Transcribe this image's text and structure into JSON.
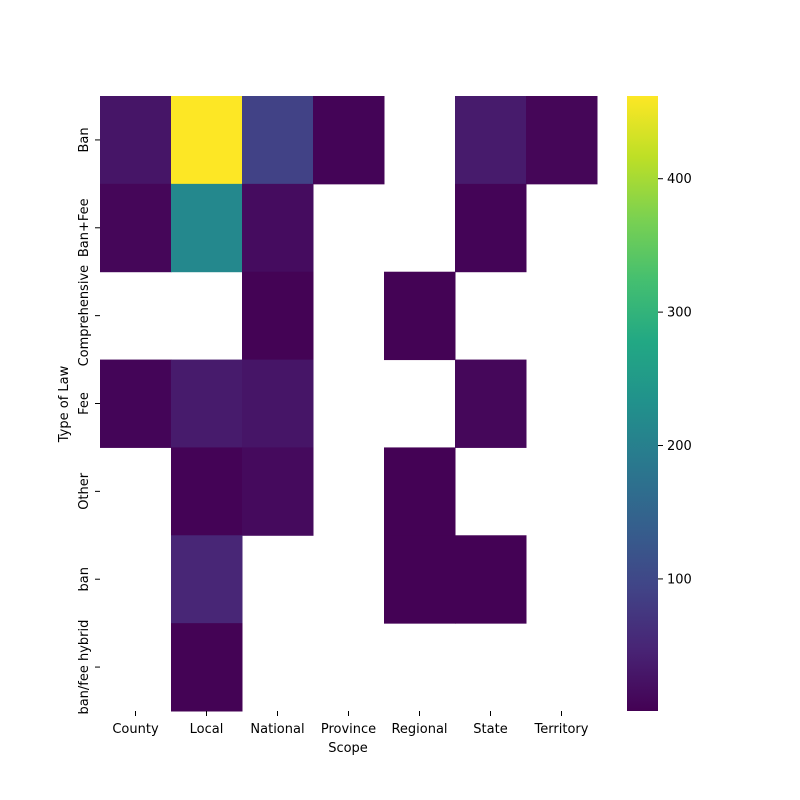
{
  "chart_data": {
    "type": "heatmap",
    "title": "",
    "xlabel": "Scope",
    "ylabel": "Type of Law",
    "x_categories": [
      "County",
      "Local",
      "National",
      "Province",
      "Regional",
      "State",
      "Territory"
    ],
    "y_categories": [
      "Ban",
      "Ban+Fee",
      "Comprehensive",
      "Fee",
      "Other",
      "ban",
      "ban/fee hybrid"
    ],
    "values": [
      [
        27,
        462,
        90,
        5,
        null,
        35,
        7
      ],
      [
        8,
        215,
        16,
        null,
        null,
        5,
        null
      ],
      [
        null,
        null,
        3,
        null,
        3,
        null,
        null
      ],
      [
        6,
        35,
        28,
        null,
        null,
        9,
        null
      ],
      [
        null,
        4,
        13,
        null,
        2,
        null,
        null
      ],
      [
        null,
        50,
        null,
        null,
        2,
        2,
        null
      ],
      [
        null,
        3,
        null,
        null,
        null,
        null,
        null
      ]
    ],
    "colormap": "viridis",
    "colorbar": {
      "range": [
        1,
        462
      ],
      "ticks": [
        100,
        200,
        300,
        400
      ]
    },
    "grid": false,
    "missing_cells": "blank"
  }
}
